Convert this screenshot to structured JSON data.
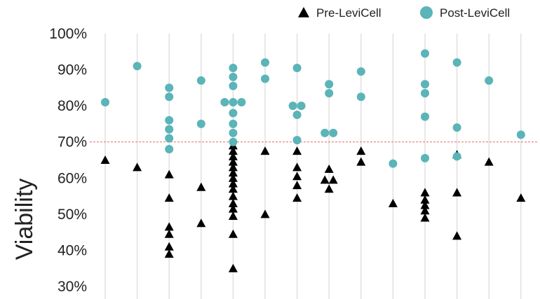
{
  "chart_data": {
    "type": "scatter",
    "xlabel": "",
    "ylabel": "Viability",
    "ylim": [
      28,
      100
    ],
    "yticks": [
      "30%",
      "40%",
      "50%",
      "60%",
      "70%",
      "80%",
      "90%",
      "100%"
    ],
    "ytick_values": [
      30,
      40,
      50,
      60,
      70,
      80,
      90,
      100
    ],
    "reference_line": {
      "y": 70,
      "color": "#e06a6a",
      "style": "dashed"
    },
    "grid": "vertical lines per sample",
    "legend_position": "top-right",
    "x": [
      1,
      2,
      3,
      4,
      5,
      6,
      7,
      8,
      9,
      10,
      11,
      12,
      13,
      14
    ],
    "series": [
      {
        "name": "Pre-LeviCell",
        "marker": "triangle",
        "color": "#000000",
        "points": [
          [
            1,
            65
          ],
          [
            2,
            63
          ],
          [
            3,
            61
          ],
          [
            3,
            54.5
          ],
          [
            3,
            46.5
          ],
          [
            3,
            44.5
          ],
          [
            3,
            41
          ],
          [
            3,
            39
          ],
          [
            4,
            57.5
          ],
          [
            4,
            47.5
          ],
          [
            5,
            69
          ],
          [
            5,
            67.5
          ],
          [
            5,
            66
          ],
          [
            5,
            64.5
          ],
          [
            5,
            63
          ],
          [
            5,
            61.5
          ],
          [
            5,
            60
          ],
          [
            5,
            58.5
          ],
          [
            5,
            57
          ],
          [
            5,
            55
          ],
          [
            5,
            53
          ],
          [
            5,
            51.5
          ],
          [
            5,
            49.5
          ],
          [
            5,
            44.5
          ],
          [
            5,
            35
          ],
          [
            6,
            67.5
          ],
          [
            6,
            50
          ],
          [
            7,
            67.5
          ],
          [
            7,
            63
          ],
          [
            7,
            60.5
          ],
          [
            7,
            58
          ],
          [
            7,
            54.5
          ],
          [
            8,
            62.5
          ],
          [
            8,
            59.5
          ],
          [
            8,
            59.5
          ],
          [
            8,
            57
          ],
          [
            9,
            67.5
          ],
          [
            9,
            64.5
          ],
          [
            10,
            53
          ],
          [
            11,
            56
          ],
          [
            11,
            54
          ],
          [
            11,
            52.5
          ],
          [
            11,
            51
          ],
          [
            11,
            49
          ],
          [
            12,
            66.5
          ],
          [
            12,
            56
          ],
          [
            12,
            44
          ],
          [
            13,
            64.5
          ],
          [
            14,
            54.5
          ]
        ]
      },
      {
        "name": "Post-LeviCell",
        "marker": "circle",
        "color": "#5ab4b8",
        "points": [
          [
            1,
            81
          ],
          [
            2,
            91
          ],
          [
            3,
            85
          ],
          [
            3,
            82.5
          ],
          [
            3,
            76
          ],
          [
            3,
            73.5
          ],
          [
            3,
            71
          ],
          [
            3,
            68
          ],
          [
            4,
            87
          ],
          [
            4,
            75
          ],
          [
            5,
            90.5
          ],
          [
            5,
            88
          ],
          [
            5,
            85.5
          ],
          [
            5,
            81
          ],
          [
            5,
            81
          ],
          [
            5,
            81
          ],
          [
            5,
            78
          ],
          [
            5,
            75
          ],
          [
            5,
            72.5
          ],
          [
            5,
            70
          ],
          [
            6,
            92
          ],
          [
            6,
            87.5
          ],
          [
            7,
            90.5
          ],
          [
            7,
            80
          ],
          [
            7,
            80
          ],
          [
            7,
            77.5
          ],
          [
            7,
            70.5
          ],
          [
            8,
            86
          ],
          [
            8,
            83.5
          ],
          [
            8,
            72.5
          ],
          [
            8,
            72.5
          ],
          [
            9,
            89.5
          ],
          [
            9,
            82.5
          ],
          [
            10,
            64
          ],
          [
            11,
            94.5
          ],
          [
            11,
            86
          ],
          [
            11,
            83.5
          ],
          [
            11,
            77
          ],
          [
            11,
            65.5
          ],
          [
            12,
            92
          ],
          [
            12,
            74
          ],
          [
            12,
            66
          ],
          [
            13,
            87
          ],
          [
            14,
            72
          ]
        ]
      }
    ]
  }
}
